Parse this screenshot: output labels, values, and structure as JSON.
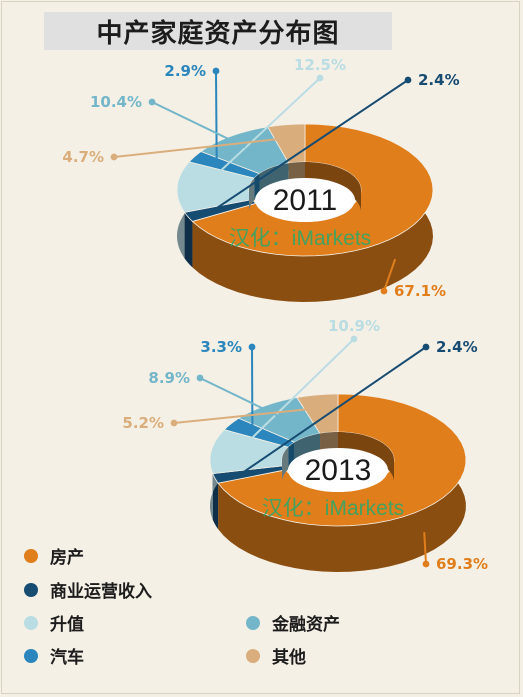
{
  "title": "中产家庭资产分布图",
  "watermark": "汉化：iMarkets",
  "colors": {
    "房产": "#e07e1c",
    "商业运营收入": "#174c72",
    "升值": "#b9dde3",
    "金融资产": "#74b6c9",
    "汽车": "#2a86bd",
    "其他": "#d9ae7c"
  },
  "legend": [
    {
      "label": "房产",
      "color": "#e07e1c"
    },
    {
      "label": "商业运营收入",
      "color": "#174c72"
    },
    {
      "label": "升值",
      "color": "#b9dde3"
    },
    {
      "label": "金融资产",
      "color": "#74b6c9"
    },
    {
      "label": "汽车",
      "color": "#2a86bd"
    },
    {
      "label": "其他",
      "color": "#d9ae7c"
    }
  ],
  "chart_data": [
    {
      "type": "pie",
      "year": "2011",
      "slices": [
        {
          "label": "房产",
          "value": 67.1,
          "text": "67.1%"
        },
        {
          "label": "商业运营收入",
          "value": 2.4,
          "text": "2.4%"
        },
        {
          "label": "升值",
          "value": 12.5,
          "text": "12.5%"
        },
        {
          "label": "汽车",
          "value": 2.9,
          "text": "2.9%"
        },
        {
          "label": "金融资产",
          "value": 10.4,
          "text": "10.4%"
        },
        {
          "label": "其他",
          "value": 4.7,
          "text": "4.7%"
        }
      ]
    },
    {
      "type": "pie",
      "year": "2013",
      "slices": [
        {
          "label": "房产",
          "value": 69.3,
          "text": "69.3%"
        },
        {
          "label": "商业运营收入",
          "value": 2.4,
          "text": "2.4%"
        },
        {
          "label": "升值",
          "value": 10.9,
          "text": "10.9%"
        },
        {
          "label": "汽车",
          "value": 3.3,
          "text": "3.3%"
        },
        {
          "label": "金融资产",
          "value": 8.9,
          "text": "8.9%"
        },
        {
          "label": "其他",
          "value": 5.2,
          "text": "5.2%"
        }
      ]
    }
  ]
}
